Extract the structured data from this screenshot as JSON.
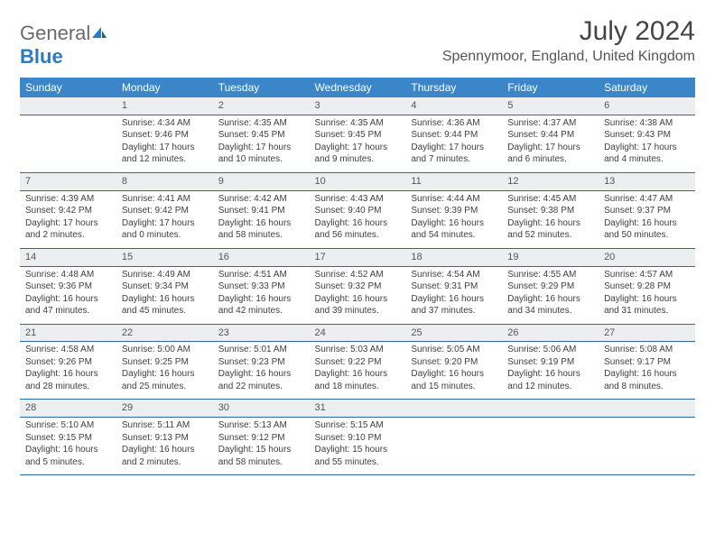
{
  "logo": {
    "text1": "General",
    "text2": "Blue"
  },
  "title": "July 2024",
  "location": "Spennymoor, England, United Kingdom",
  "colors": {
    "header_bg": "#3a86c8",
    "daynum_bg": "#eceef0",
    "cell_border": "#2a6aa0",
    "logo_blue": "#2a7bbf",
    "logo_gray": "#6b6b6b"
  },
  "dayNames": [
    "Sunday",
    "Monday",
    "Tuesday",
    "Wednesday",
    "Thursday",
    "Friday",
    "Saturday"
  ],
  "weeks": [
    {
      "nums": [
        "",
        "1",
        "2",
        "3",
        "4",
        "5",
        "6"
      ],
      "cells": [
        {},
        {
          "sr": "Sunrise: 4:34 AM",
          "ss": "Sunset: 9:46 PM",
          "dl": "Daylight: 17 hours and 12 minutes."
        },
        {
          "sr": "Sunrise: 4:35 AM",
          "ss": "Sunset: 9:45 PM",
          "dl": "Daylight: 17 hours and 10 minutes."
        },
        {
          "sr": "Sunrise: 4:35 AM",
          "ss": "Sunset: 9:45 PM",
          "dl": "Daylight: 17 hours and 9 minutes."
        },
        {
          "sr": "Sunrise: 4:36 AM",
          "ss": "Sunset: 9:44 PM",
          "dl": "Daylight: 17 hours and 7 minutes."
        },
        {
          "sr": "Sunrise: 4:37 AM",
          "ss": "Sunset: 9:44 PM",
          "dl": "Daylight: 17 hours and 6 minutes."
        },
        {
          "sr": "Sunrise: 4:38 AM",
          "ss": "Sunset: 9:43 PM",
          "dl": "Daylight: 17 hours and 4 minutes."
        }
      ]
    },
    {
      "nums": [
        "7",
        "8",
        "9",
        "10",
        "11",
        "12",
        "13"
      ],
      "cells": [
        {
          "sr": "Sunrise: 4:39 AM",
          "ss": "Sunset: 9:42 PM",
          "dl": "Daylight: 17 hours and 2 minutes."
        },
        {
          "sr": "Sunrise: 4:41 AM",
          "ss": "Sunset: 9:42 PM",
          "dl": "Daylight: 17 hours and 0 minutes."
        },
        {
          "sr": "Sunrise: 4:42 AM",
          "ss": "Sunset: 9:41 PM",
          "dl": "Daylight: 16 hours and 58 minutes."
        },
        {
          "sr": "Sunrise: 4:43 AM",
          "ss": "Sunset: 9:40 PM",
          "dl": "Daylight: 16 hours and 56 minutes."
        },
        {
          "sr": "Sunrise: 4:44 AM",
          "ss": "Sunset: 9:39 PM",
          "dl": "Daylight: 16 hours and 54 minutes."
        },
        {
          "sr": "Sunrise: 4:45 AM",
          "ss": "Sunset: 9:38 PM",
          "dl": "Daylight: 16 hours and 52 minutes."
        },
        {
          "sr": "Sunrise: 4:47 AM",
          "ss": "Sunset: 9:37 PM",
          "dl": "Daylight: 16 hours and 50 minutes."
        }
      ]
    },
    {
      "nums": [
        "14",
        "15",
        "16",
        "17",
        "18",
        "19",
        "20"
      ],
      "cells": [
        {
          "sr": "Sunrise: 4:48 AM",
          "ss": "Sunset: 9:36 PM",
          "dl": "Daylight: 16 hours and 47 minutes."
        },
        {
          "sr": "Sunrise: 4:49 AM",
          "ss": "Sunset: 9:34 PM",
          "dl": "Daylight: 16 hours and 45 minutes."
        },
        {
          "sr": "Sunrise: 4:51 AM",
          "ss": "Sunset: 9:33 PM",
          "dl": "Daylight: 16 hours and 42 minutes."
        },
        {
          "sr": "Sunrise: 4:52 AM",
          "ss": "Sunset: 9:32 PM",
          "dl": "Daylight: 16 hours and 39 minutes."
        },
        {
          "sr": "Sunrise: 4:54 AM",
          "ss": "Sunset: 9:31 PM",
          "dl": "Daylight: 16 hours and 37 minutes."
        },
        {
          "sr": "Sunrise: 4:55 AM",
          "ss": "Sunset: 9:29 PM",
          "dl": "Daylight: 16 hours and 34 minutes."
        },
        {
          "sr": "Sunrise: 4:57 AM",
          "ss": "Sunset: 9:28 PM",
          "dl": "Daylight: 16 hours and 31 minutes."
        }
      ]
    },
    {
      "nums": [
        "21",
        "22",
        "23",
        "24",
        "25",
        "26",
        "27"
      ],
      "cells": [
        {
          "sr": "Sunrise: 4:58 AM",
          "ss": "Sunset: 9:26 PM",
          "dl": "Daylight: 16 hours and 28 minutes."
        },
        {
          "sr": "Sunrise: 5:00 AM",
          "ss": "Sunset: 9:25 PM",
          "dl": "Daylight: 16 hours and 25 minutes."
        },
        {
          "sr": "Sunrise: 5:01 AM",
          "ss": "Sunset: 9:23 PM",
          "dl": "Daylight: 16 hours and 22 minutes."
        },
        {
          "sr": "Sunrise: 5:03 AM",
          "ss": "Sunset: 9:22 PM",
          "dl": "Daylight: 16 hours and 18 minutes."
        },
        {
          "sr": "Sunrise: 5:05 AM",
          "ss": "Sunset: 9:20 PM",
          "dl": "Daylight: 16 hours and 15 minutes."
        },
        {
          "sr": "Sunrise: 5:06 AM",
          "ss": "Sunset: 9:19 PM",
          "dl": "Daylight: 16 hours and 12 minutes."
        },
        {
          "sr": "Sunrise: 5:08 AM",
          "ss": "Sunset: 9:17 PM",
          "dl": "Daylight: 16 hours and 8 minutes."
        }
      ]
    },
    {
      "nums": [
        "28",
        "29",
        "30",
        "31",
        "",
        "",
        ""
      ],
      "cells": [
        {
          "sr": "Sunrise: 5:10 AM",
          "ss": "Sunset: 9:15 PM",
          "dl": "Daylight: 16 hours and 5 minutes."
        },
        {
          "sr": "Sunrise: 5:11 AM",
          "ss": "Sunset: 9:13 PM",
          "dl": "Daylight: 16 hours and 2 minutes."
        },
        {
          "sr": "Sunrise: 5:13 AM",
          "ss": "Sunset: 9:12 PM",
          "dl": "Daylight: 15 hours and 58 minutes."
        },
        {
          "sr": "Sunrise: 5:15 AM",
          "ss": "Sunset: 9:10 PM",
          "dl": "Daylight: 15 hours and 55 minutes."
        },
        {},
        {},
        {}
      ]
    }
  ]
}
